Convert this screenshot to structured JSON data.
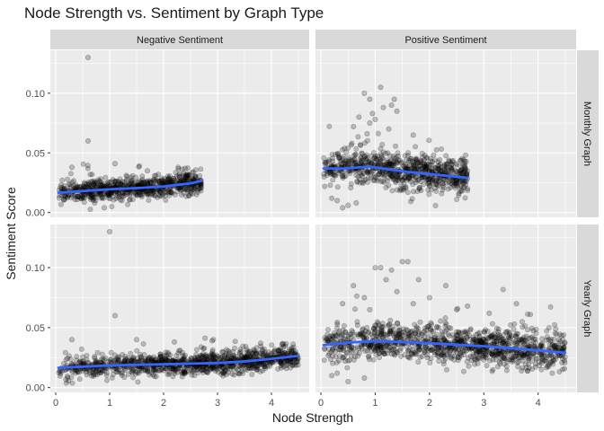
{
  "chart_data": {
    "type": "scatter",
    "title": "Node Strength vs. Sentiment by Graph Type",
    "xlabel": "Node Strength",
    "ylabel": "Sentiment Score",
    "facet_cols": [
      "Negative Sentiment",
      "Positive Sentiment"
    ],
    "facet_rows": [
      "Monthly Graph",
      "Yearly Graph"
    ],
    "xlim": [
      -0.1,
      4.7
    ],
    "ylim": [
      -0.004,
      0.136
    ],
    "x_ticks": [
      0,
      1,
      2,
      3,
      4
    ],
    "x_tick_labels": [
      "0",
      "1",
      "2",
      "3",
      "4"
    ],
    "y_ticks": [
      0.0,
      0.05,
      0.1
    ],
    "y_tick_labels": [
      "0.00",
      "0.05",
      "0.10"
    ],
    "grid": true,
    "point_color": "#000000",
    "point_alpha": 0.22,
    "smooth_color": "#3366FF",
    "panel_background": "#EBEBEB",
    "strip_background": "#D9D9D9",
    "panels": [
      {
        "col": "Negative Sentiment",
        "row": "Monthly Graph",
        "x_range": [
          0.05,
          2.7
        ],
        "trend_x": [
          0.05,
          0.5,
          1.0,
          1.5,
          2.0,
          2.5,
          2.7
        ],
        "trend_y": [
          0.0165,
          0.018,
          0.0195,
          0.0205,
          0.0218,
          0.0245,
          0.0265
        ],
        "spread": 0.0045,
        "n_points": 750,
        "outliers": [
          {
            "x": 0.6,
            "y": 0.13
          },
          {
            "x": 0.6,
            "y": 0.06
          },
          {
            "x": 0.3,
            "y": 0.038
          },
          {
            "x": 1.1,
            "y": 0.041
          },
          {
            "x": 2.4,
            "y": 0.037
          },
          {
            "x": 1.7,
            "y": 0.035
          },
          {
            "x": 0.9,
            "y": 0.004
          }
        ]
      },
      {
        "col": "Positive Sentiment",
        "row": "Monthly Graph",
        "x_range": [
          0.05,
          2.7
        ],
        "trend_x": [
          0.05,
          0.4,
          0.9,
          1.2,
          1.6,
          2.0,
          2.4,
          2.7
        ],
        "trend_y": [
          0.037,
          0.0368,
          0.0385,
          0.0365,
          0.034,
          0.0322,
          0.0305,
          0.029
        ],
        "spread": 0.0075,
        "n_points": 750,
        "outliers": [
          {
            "x": 1.1,
            "y": 0.105
          },
          {
            "x": 0.8,
            "y": 0.1
          },
          {
            "x": 0.9,
            "y": 0.095
          },
          {
            "x": 1.3,
            "y": 0.09
          },
          {
            "x": 1.4,
            "y": 0.085
          },
          {
            "x": 0.7,
            "y": 0.08
          },
          {
            "x": 1.0,
            "y": 0.078
          },
          {
            "x": 1.35,
            "y": 0.095
          },
          {
            "x": 1.25,
            "y": 0.07
          },
          {
            "x": 0.6,
            "y": 0.072
          },
          {
            "x": 1.15,
            "y": 0.088
          },
          {
            "x": 0.85,
            "y": 0.066
          },
          {
            "x": 0.95,
            "y": 0.083
          },
          {
            "x": 1.7,
            "y": 0.065
          },
          {
            "x": 0.3,
            "y": 0.01
          },
          {
            "x": 0.5,
            "y": 0.006
          },
          {
            "x": 0.2,
            "y": 0.012
          },
          {
            "x": 0.4,
            "y": 0.004
          },
          {
            "x": 0.65,
            "y": 0.008
          },
          {
            "x": 0.9,
            "y": 0.075
          }
        ]
      },
      {
        "col": "Negative Sentiment",
        "row": "Yearly Graph",
        "x_range": [
          0.05,
          4.5
        ],
        "trend_x": [
          0.05,
          1.0,
          2.0,
          3.0,
          3.5,
          4.0,
          4.5
        ],
        "trend_y": [
          0.0165,
          0.0185,
          0.0195,
          0.0205,
          0.0218,
          0.024,
          0.0265
        ],
        "spread": 0.0045,
        "n_points": 1100,
        "outliers": [
          {
            "x": 1.0,
            "y": 0.13
          },
          {
            "x": 1.1,
            "y": 0.06
          },
          {
            "x": 0.3,
            "y": 0.04
          },
          {
            "x": 1.5,
            "y": 0.04
          },
          {
            "x": 2.9,
            "y": 0.039
          },
          {
            "x": 3.8,
            "y": 0.037
          },
          {
            "x": 4.2,
            "y": 0.036
          },
          {
            "x": 2.2,
            "y": 0.038
          }
        ]
      },
      {
        "col": "Positive Sentiment",
        "row": "Yearly Graph",
        "x_range": [
          0.05,
          4.5
        ],
        "trend_x": [
          0.05,
          0.5,
          1.0,
          1.5,
          2.0,
          2.5,
          3.0,
          3.5,
          4.0,
          4.5
        ],
        "trend_y": [
          0.0355,
          0.0375,
          0.0388,
          0.038,
          0.037,
          0.0358,
          0.0345,
          0.0328,
          0.031,
          0.029
        ],
        "spread": 0.0075,
        "n_points": 1100,
        "outliers": [
          {
            "x": 1.0,
            "y": 0.1
          },
          {
            "x": 1.1,
            "y": 0.1
          },
          {
            "x": 1.3,
            "y": 0.098
          },
          {
            "x": 1.5,
            "y": 0.105
          },
          {
            "x": 1.6,
            "y": 0.105
          },
          {
            "x": 0.6,
            "y": 0.085
          },
          {
            "x": 1.2,
            "y": 0.09
          },
          {
            "x": 1.8,
            "y": 0.09
          },
          {
            "x": 0.8,
            "y": 0.075
          },
          {
            "x": 1.4,
            "y": 0.08
          },
          {
            "x": 2.0,
            "y": 0.075
          },
          {
            "x": 2.3,
            "y": 0.085
          },
          {
            "x": 3.6,
            "y": 0.07
          },
          {
            "x": 2.7,
            "y": 0.068
          },
          {
            "x": 1.7,
            "y": 0.07
          },
          {
            "x": 0.9,
            "y": 0.065
          },
          {
            "x": 2.5,
            "y": 0.065
          },
          {
            "x": 3.1,
            "y": 0.062
          },
          {
            "x": 0.4,
            "y": 0.07
          },
          {
            "x": 0.2,
            "y": 0.01
          },
          {
            "x": 0.5,
            "y": 0.005
          },
          {
            "x": 0.8,
            "y": 0.008
          },
          {
            "x": 0.3,
            "y": 0.012
          }
        ]
      }
    ]
  }
}
